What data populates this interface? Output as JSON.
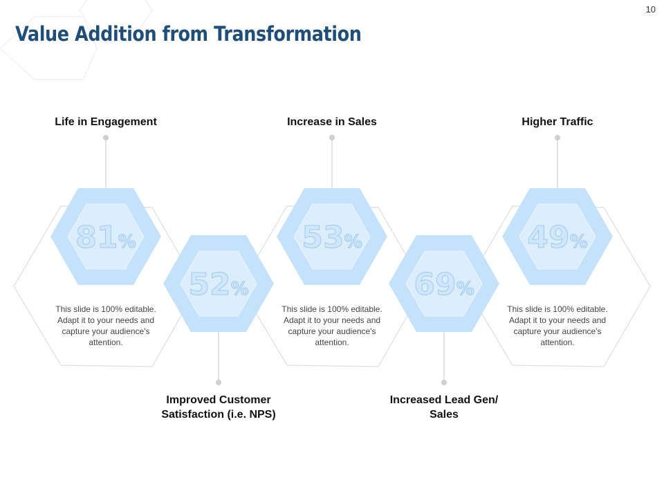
{
  "slide": {
    "title": "Value Addition from Transformation",
    "page_number": "10"
  },
  "items": [
    {
      "label": "Life in Engagement",
      "value": "81",
      "unit": "%",
      "position": "top"
    },
    {
      "label": "Improved Customer Satisfaction (i.e. NPS)",
      "value": "52",
      "unit": "%",
      "position": "bottom"
    },
    {
      "label": "Increase in Sales",
      "value": "53",
      "unit": "%",
      "position": "top"
    },
    {
      "label": "Increased Lead Gen/ Sales",
      "value": "69",
      "unit": "%",
      "position": "bottom"
    },
    {
      "label": "Higher Traffic",
      "value": "49",
      "unit": "%",
      "position": "top"
    }
  ],
  "descriptions": [
    "This slide is 100% editable. Adapt it to your needs and capture your audience's attention.",
    "This slide is 100% editable. Adapt it to your needs and capture your audience's attention.",
    "This slide is 100% editable. Adapt it to your needs and capture your audience's attention."
  ],
  "colors": {
    "title": "#1f4e79",
    "hex_outer": "#c4e2fa",
    "hex_inner": "#dcedfc",
    "outline": "#dddddd"
  }
}
